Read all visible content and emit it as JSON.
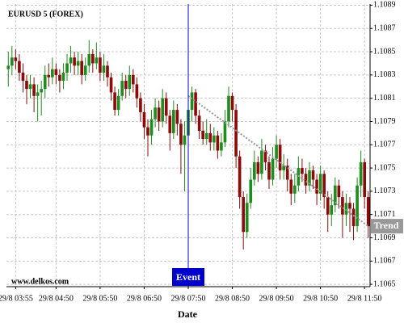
{
  "chart_data": {
    "type": "candlestick",
    "title": "EURUSD 5 (FOREX)",
    "x_label": "Date",
    "watermark": "www.delkos.com",
    "categories": [
      null,
      null,
      "29/8 03:55",
      null,
      null,
      null,
      null,
      null,
      null,
      null,
      null,
      null,
      null,
      "29/8 04:50",
      null,
      null,
      null,
      null,
      null,
      null,
      null,
      null,
      null,
      null,
      null,
      "29/8 05:50",
      null,
      null,
      null,
      null,
      null,
      null,
      null,
      null,
      null,
      null,
      null,
      "29/8 06:50",
      null,
      null,
      null,
      null,
      null,
      null,
      null,
      null,
      null,
      null,
      null,
      "29/8 07:50",
      null,
      null,
      null,
      null,
      null,
      null,
      null,
      null,
      null,
      null,
      null,
      "29/8 08:50",
      null,
      null,
      null,
      null,
      null,
      null,
      null,
      null,
      null,
      null,
      null,
      "29/8 09:50",
      null,
      null,
      null,
      null,
      null,
      null,
      null,
      null,
      null,
      null,
      null,
      "29/8 10:50",
      null,
      null,
      null,
      null,
      null,
      null,
      null,
      null,
      null,
      null,
      null,
      "29/8 11:50",
      null
    ],
    "open": [
      1.10835,
      1.10838,
      1.10845,
      1.10842,
      1.10832,
      1.10825,
      1.10818,
      1.10822,
      1.10812,
      1.10815,
      1.10818,
      1.1083,
      1.10828,
      1.10835,
      1.1083,
      1.10825,
      1.10832,
      1.1084,
      1.10845,
      1.10838,
      1.10842,
      1.1083,
      1.10838,
      1.10848,
      1.1084,
      1.10845,
      1.10832,
      1.10838,
      1.10828,
      1.10815,
      1.108,
      1.10812,
      1.10825,
      1.10818,
      1.1083,
      1.10822,
      1.1081,
      1.10798,
      1.10785,
      1.10778,
      1.10792,
      1.10802,
      1.1079,
      1.1081,
      1.10795,
      1.1078,
      1.108,
      1.10788,
      1.1077,
      1.10778,
      1.108,
      1.10815,
      1.10795,
      1.10782,
      1.10775,
      1.1078,
      1.10772,
      1.10778,
      1.10765,
      1.10772,
      1.1079,
      1.10812,
      1.108,
      1.1076,
      1.10725,
      1.10695,
      1.1072,
      1.1074,
      1.10755,
      1.10745,
      1.10765,
      1.10755,
      1.1074,
      1.10758,
      1.1077,
      1.10748,
      1.10752,
      1.1074,
      1.10728,
      1.10735,
      1.1075,
      1.10745,
      1.10735,
      1.10748,
      1.1074,
      1.10728,
      1.10745,
      1.10725,
      1.1071,
      1.10718,
      1.10735,
      1.10725,
      1.1071,
      1.1072,
      1.10715,
      1.107,
      1.10735,
      1.10755,
      1.10725
    ],
    "high": [
      1.1085,
      1.10855,
      1.10852,
      1.10848,
      1.1084,
      1.1083,
      1.1083,
      1.10828,
      1.10822,
      1.10825,
      1.10838,
      1.1084,
      1.10845,
      1.1084,
      1.10835,
      1.1084,
      1.10848,
      1.10855,
      1.1085,
      1.1085,
      1.10848,
      1.10845,
      1.1086,
      1.10852,
      1.10858,
      1.1085,
      1.10848,
      1.10842,
      1.10832,
      1.1082,
      1.10818,
      1.10832,
      1.1083,
      1.10838,
      1.10835,
      1.10828,
      1.10815,
      1.10805,
      1.10792,
      1.108,
      1.1081,
      1.10808,
      1.10818,
      1.10815,
      1.108,
      1.10808,
      1.10805,
      1.10792,
      1.1079,
      1.10812,
      1.1082,
      1.10818,
      1.108,
      1.1079,
      1.10792,
      1.10788,
      1.10785,
      1.10782,
      1.1078,
      1.108,
      1.1082,
      1.10815,
      1.10805,
      1.10765,
      1.1073,
      1.10728,
      1.1075,
      1.10765,
      1.1076,
      1.10775,
      1.1077,
      1.1076,
      1.10768,
      1.10778,
      1.10775,
      1.10762,
      1.10758,
      1.10745,
      1.10745,
      1.1076,
      1.10758,
      1.1075,
      1.10755,
      1.10752,
      1.10745,
      1.10752,
      1.10748,
      1.1073,
      1.10728,
      1.10742,
      1.1074,
      1.1073,
      1.10728,
      1.10725,
      1.1072,
      1.10742,
      1.10765,
      1.10758,
      1.1073
    ],
    "low": [
      1.1082,
      1.1083,
      1.10835,
      1.10825,
      1.10815,
      1.10805,
      1.1081,
      1.10798,
      1.1079,
      1.10795,
      1.1081,
      1.1082,
      1.10822,
      1.10822,
      1.10815,
      1.10818,
      1.10825,
      1.10832,
      1.1083,
      1.1083,
      1.10822,
      1.10825,
      1.10832,
      1.10832,
      1.10835,
      1.10825,
      1.10825,
      1.1082,
      1.10808,
      1.10795,
      1.10795,
      1.10808,
      1.1081,
      1.10812,
      1.10815,
      1.10802,
      1.1079,
      1.10775,
      1.1076,
      1.1077,
      1.10785,
      1.10782,
      1.10785,
      1.10788,
      1.10765,
      1.10775,
      1.10778,
      1.10745,
      1.1073,
      1.1077,
      1.1079,
      1.10788,
      1.10775,
      1.1077,
      1.1077,
      1.10765,
      1.10765,
      1.10758,
      1.1076,
      1.10768,
      1.10785,
      1.1079,
      1.1075,
      1.10715,
      1.1068,
      1.1069,
      1.10715,
      1.10735,
      1.10738,
      1.1074,
      1.10748,
      1.10732,
      1.10735,
      1.1075,
      1.1074,
      1.1074,
      1.1073,
      1.10718,
      1.1072,
      1.1073,
      1.10738,
      1.10728,
      1.1073,
      1.10732,
      1.10718,
      1.10722,
      1.10715,
      1.10695,
      1.107,
      1.10712,
      1.10715,
      1.1069,
      1.107,
      1.10695,
      1.10688,
      1.10695,
      1.10725,
      1.10715,
      1.1069
    ],
    "close": [
      1.10838,
      1.10845,
      1.10842,
      1.10832,
      1.10825,
      1.10818,
      1.10822,
      1.10812,
      1.10815,
      1.10818,
      1.1083,
      1.10828,
      1.10835,
      1.1083,
      1.10825,
      1.10832,
      1.1084,
      1.10845,
      1.10838,
      1.10842,
      1.1083,
      1.10838,
      1.10848,
      1.1084,
      1.10845,
      1.10832,
      1.10838,
      1.10828,
      1.10815,
      1.108,
      1.10812,
      1.10825,
      1.10818,
      1.1083,
      1.10822,
      1.1081,
      1.10798,
      1.10785,
      1.10778,
      1.10792,
      1.10802,
      1.1079,
      1.1081,
      1.10795,
      1.1078,
      1.108,
      1.10788,
      1.1077,
      1.10778,
      1.108,
      1.10815,
      1.10795,
      1.10782,
      1.10775,
      1.1078,
      1.10772,
      1.10778,
      1.10765,
      1.10772,
      1.1079,
      1.10812,
      1.108,
      1.1076,
      1.10725,
      1.10695,
      1.1072,
      1.1074,
      1.10755,
      1.10745,
      1.10765,
      1.10755,
      1.1074,
      1.10758,
      1.1077,
      1.10748,
      1.10752,
      1.1074,
      1.10728,
      1.10735,
      1.1075,
      1.10745,
      1.10735,
      1.10748,
      1.1074,
      1.10728,
      1.10745,
      1.10725,
      1.1071,
      1.10718,
      1.10735,
      1.10725,
      1.1071,
      1.1072,
      1.10715,
      1.107,
      1.10735,
      1.10755,
      1.10725,
      1.107
    ],
    "up_color": "#1e8c1e",
    "down_color": "#8b0b0b",
    "ylim": [
      1.10648,
      1.10891
    ],
    "yticks": [
      1.1065,
      1.1067,
      1.1069,
      1.1071,
      1.1073,
      1.1075,
      1.1077,
      1.1079,
      1.1081,
      1.1083,
      1.1085,
      1.1087,
      1.1089
    ],
    "grid": true,
    "event": {
      "label": "Event",
      "index": 49,
      "color": "#0000cc"
    },
    "trend": {
      "label": "Trend",
      "start": [
        49,
        1.10812
      ],
      "end": [
        98,
        1.107
      ],
      "color": "#999999"
    }
  }
}
